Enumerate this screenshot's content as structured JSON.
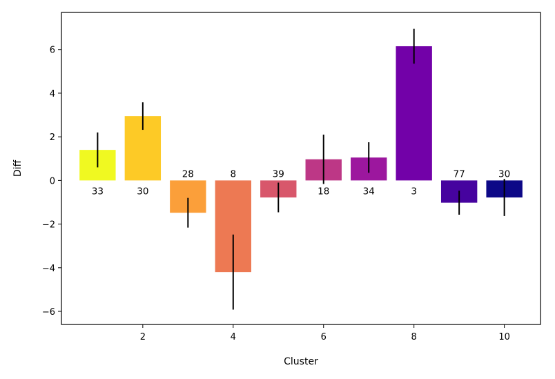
{
  "chart_data": {
    "type": "bar",
    "xlabel": "Cluster",
    "ylabel": "Diff",
    "xlim": [
      0.2,
      10.8
    ],
    "ylim": [
      -6.6,
      7.7
    ],
    "xticks": [
      "2",
      "4",
      "6",
      "8",
      "10"
    ],
    "yticks": [
      "−6",
      "−4",
      "−2",
      "0",
      "2",
      "4",
      "6"
    ],
    "grid": false,
    "bars": [
      {
        "x": 1,
        "value": 1.4,
        "err": 0.8,
        "label": "33",
        "color": "#f0f921"
      },
      {
        "x": 2,
        "value": 2.95,
        "err": 0.63,
        "label": "30",
        "color": "#fdca26"
      },
      {
        "x": 3,
        "value": -1.48,
        "err": 0.68,
        "label": "28",
        "color": "#fb9f3a"
      },
      {
        "x": 4,
        "value": -4.2,
        "err": 1.72,
        "label": "8",
        "color": "#ed7953"
      },
      {
        "x": 5,
        "value": -0.78,
        "err": 0.68,
        "label": "39",
        "color": "#d8576b"
      },
      {
        "x": 6,
        "value": 0.97,
        "err": 1.13,
        "label": "18",
        "color": "#bd3786"
      },
      {
        "x": 7,
        "value": 1.05,
        "err": 0.7,
        "label": "34",
        "color": "#9c179e"
      },
      {
        "x": 8,
        "value": 6.15,
        "err": 0.8,
        "label": "3",
        "color": "#7201a8"
      },
      {
        "x": 9,
        "value": -1.02,
        "err": 0.55,
        "label": "77",
        "color": "#46039f"
      },
      {
        "x": 10,
        "value": -0.78,
        "err": 0.85,
        "label": "30",
        "color": "#0d0887"
      }
    ]
  }
}
